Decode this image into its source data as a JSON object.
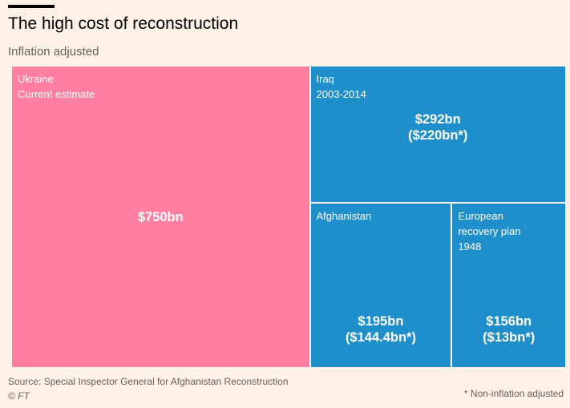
{
  "title": "The high cost of reconstruction",
  "subtitle": "Inflation adjusted",
  "source": "Source: Special Inspector General for Afghanistan Reconstruction",
  "credit": "© FT",
  "footnote": "* Non-inflation adjusted",
  "colors": {
    "background": "#fff1e5",
    "ukraine": "#ff7fa2",
    "other": "#1f8fcc"
  },
  "chart_data": {
    "type": "treemap",
    "title": "The high cost of reconstruction",
    "subtitle": "Inflation adjusted",
    "units": "US$ billions",
    "items": [
      {
        "label": "Ukraine",
        "sublabel": [
          "Current estimate"
        ],
        "value": 750,
        "value_text": "$750bn",
        "value_text_2": ""
      },
      {
        "label": "Iraq",
        "sublabel": [
          "2003-2014"
        ],
        "value": 292,
        "non_inflation_adjusted": 220,
        "value_text": "$292bn",
        "value_text_2": "($220bn*)"
      },
      {
        "label": "Afghanistan",
        "sublabel": [],
        "value": 195,
        "non_inflation_adjusted": 144.4,
        "value_text": "$195bn",
        "value_text_2": "($144.4bn*)"
      },
      {
        "label": "European",
        "sublabel": [
          "recovery plan",
          "1948"
        ],
        "value": 156,
        "non_inflation_adjusted": 13,
        "value_text": "$156bn",
        "value_text_2": "($13bn*)"
      }
    ]
  }
}
